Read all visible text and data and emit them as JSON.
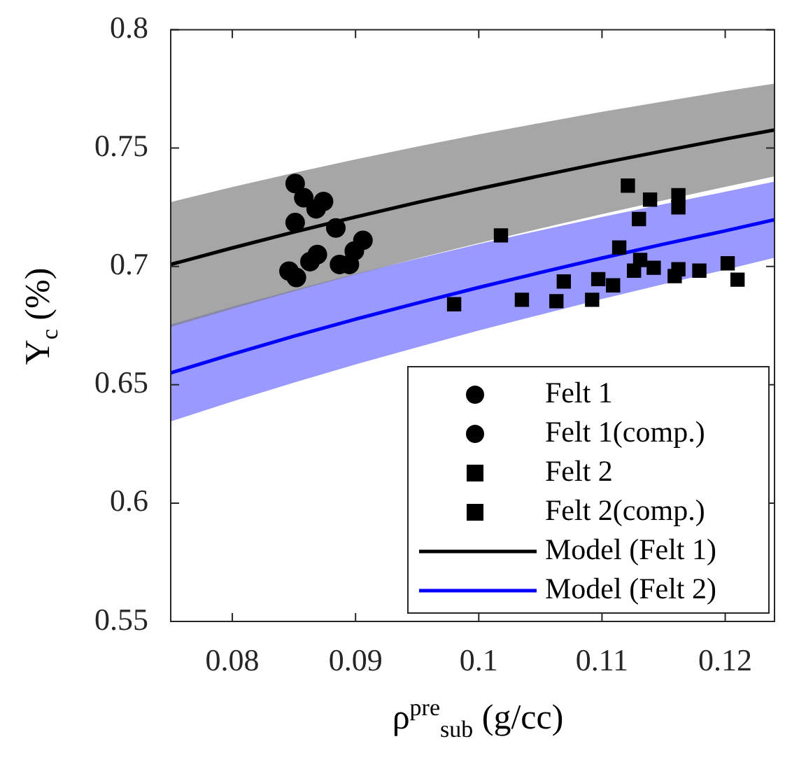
{
  "chart_data": {
    "type": "scatter",
    "xlabel": "ρ$^{pre}$$_{sub}$ (g/cc)",
    "ylabel": "Y$_{c}$ (%)",
    "xlim": [
      0.075,
      0.124
    ],
    "xticks": [
      0.08,
      0.09,
      0.1,
      0.11,
      0.12
    ],
    "ylim": [
      0.55,
      0.8
    ],
    "yticks": [
      0.55,
      0.6,
      0.65,
      0.7,
      0.75,
      0.8
    ],
    "grid": false,
    "legend": "bottom right",
    "series": [
      {
        "name": "Felt 1",
        "marker": "circle",
        "color": "#000000",
        "x": [
          0.0874,
          0.0868,
          0.0884,
          0.0869,
          0.0895
        ],
        "values": [
          0.7274,
          0.7243,
          0.7162,
          0.705,
          0.7008
        ]
      },
      {
        "name": "Felt 1(comp.)",
        "marker": "circle",
        "color": "#000000",
        "x": [
          0.0851,
          0.0858,
          0.0851,
          0.0906,
          0.0899,
          0.0863,
          0.0887,
          0.0846,
          0.0852
        ],
        "values": [
          0.735,
          0.729,
          0.7185,
          0.711,
          0.7065,
          0.702,
          0.7008,
          0.698,
          0.6953
        ]
      },
      {
        "name": "Felt 2",
        "marker": "square",
        "color": "#000000",
        "x": [
          0.1121,
          0.1018,
          0.1139,
          0.1162,
          0.1162,
          0.1114,
          0.1097
        ],
        "values": [
          0.7341,
          0.7131,
          0.7282,
          0.7301,
          0.7249,
          0.708,
          0.6946
        ]
      },
      {
        "name": "Felt 2(comp.)",
        "marker": "square",
        "color": "#000000",
        "x": [
          0.098,
          0.1035,
          0.1063,
          0.1069,
          0.1092,
          0.1109,
          0.113,
          0.1126,
          0.1131,
          0.1142,
          0.1159,
          0.1162,
          0.1179,
          0.1202,
          0.121
        ],
        "values": [
          0.684,
          0.6859,
          0.6853,
          0.6936,
          0.6859,
          0.692,
          0.72,
          0.6982,
          0.7027,
          0.6994,
          0.6959,
          0.6988,
          0.6982,
          0.7013,
          0.6944
        ]
      },
      {
        "name": "Model (Felt 1)",
        "type": "line",
        "marker": "none",
        "color": "#000000",
        "x": [
          0.075,
          0.08,
          0.085,
          0.09,
          0.095,
          0.1,
          0.105,
          0.11,
          0.115,
          0.12,
          0.124
        ],
        "values": [
          0.7008,
          0.7078,
          0.7145,
          0.7209,
          0.727,
          0.7328,
          0.7383,
          0.7437,
          0.7488,
          0.7538,
          0.7576
        ],
        "upper": [
          0.7272,
          0.7335,
          0.7395,
          0.7452,
          0.7506,
          0.7558,
          0.7606,
          0.7653,
          0.7697,
          0.774,
          0.7772
        ],
        "lower": [
          0.6744,
          0.6821,
          0.6895,
          0.6966,
          0.7034,
          0.7098,
          0.716,
          0.7221,
          0.7279,
          0.7336,
          0.738
        ]
      },
      {
        "name": "Model (Felt 2)",
        "type": "line",
        "marker": "none",
        "color": "#0000ff",
        "x": [
          0.075,
          0.08,
          0.085,
          0.09,
          0.095,
          0.1,
          0.105,
          0.11,
          0.115,
          0.12,
          0.124
        ],
        "values": [
          0.655,
          0.6629,
          0.6705,
          0.6777,
          0.6845,
          0.6911,
          0.6974,
          0.7035,
          0.7094,
          0.715,
          0.7197
        ],
        "upper": [
          0.6755,
          0.683,
          0.6901,
          0.6969,
          0.7032,
          0.7094,
          0.7152,
          0.7209,
          0.7263,
          0.7315,
          0.7358
        ],
        "lower": [
          0.6345,
          0.6429,
          0.6509,
          0.6586,
          0.6658,
          0.6729,
          0.6796,
          0.6862,
          0.6925,
          0.6986,
          0.7037
        ]
      }
    ]
  }
}
